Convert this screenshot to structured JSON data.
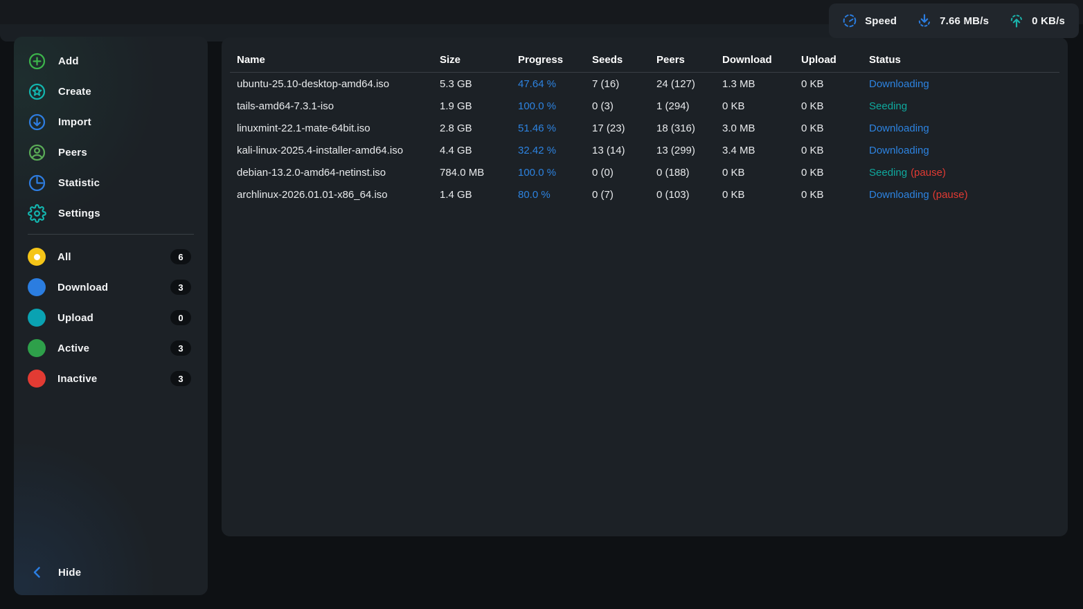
{
  "window": {
    "controls": [
      {
        "name": "minimize-button",
        "icon": "minimize-icon"
      },
      {
        "name": "maximize-button",
        "icon": "maximize-icon"
      },
      {
        "name": "close-button",
        "icon": "close-icon"
      }
    ]
  },
  "sidebar": {
    "nav": [
      {
        "label": "Add",
        "icon": "plus-circle-icon",
        "color": "#3cb44b"
      },
      {
        "label": "Create",
        "icon": "star-circle-icon",
        "color": "#13b6af"
      },
      {
        "label": "Import",
        "icon": "arrow-down-circle-icon",
        "color": "#2e7de1"
      },
      {
        "label": "Peers",
        "icon": "person-circle-icon",
        "color": "#5aab57"
      },
      {
        "label": "Statistic",
        "icon": "pie-chart-icon",
        "color": "#2e7de1"
      },
      {
        "label": "Settings",
        "icon": "gear-icon",
        "color": "#13b6af"
      }
    ],
    "filters": [
      {
        "label": "All",
        "count": "6",
        "color": "#f5c518",
        "selected": true
      },
      {
        "label": "Download",
        "count": "3",
        "color": "#2b7de0",
        "selected": false
      },
      {
        "label": "Upload",
        "count": "0",
        "color": "#0aa2b2",
        "selected": false
      },
      {
        "label": "Active",
        "count": "3",
        "color": "#2ea04a",
        "selected": false
      },
      {
        "label": "Inactive",
        "count": "3",
        "color": "#e23b33",
        "selected": false
      }
    ],
    "hide_label": "Hide"
  },
  "table": {
    "columns": [
      "Name",
      "Size",
      "Progress",
      "Seeds",
      "Peers",
      "Download",
      "Upload",
      "Status"
    ],
    "rows": [
      {
        "name": "ubuntu-25.10-desktop-amd64.iso",
        "size": "5.3 GB",
        "progress": "47.64 %",
        "seeds": "7 (16)",
        "peers": "24 (127)",
        "download": "1.3 MB",
        "upload": "0 KB",
        "status": "Downloading",
        "status_kind": "downloading",
        "paused": false,
        "paused_label": ""
      },
      {
        "name": "tails-amd64-7.3.1-iso",
        "size": "1.9 GB",
        "progress": "100.0 %",
        "seeds": "0 (3)",
        "peers": "1 (294)",
        "download": "0 KB",
        "upload": "0 KB",
        "status": "Seeding",
        "status_kind": "seeding",
        "paused": false,
        "paused_label": ""
      },
      {
        "name": "linuxmint-22.1-mate-64bit.iso",
        "size": "2.8 GB",
        "progress": "51.46 %",
        "seeds": "17 (23)",
        "peers": "18 (316)",
        "download": "3.0 MB",
        "upload": "0 KB",
        "status": "Downloading",
        "status_kind": "downloading",
        "paused": false,
        "paused_label": ""
      },
      {
        "name": "kali-linux-2025.4-installer-amd64.iso",
        "size": "4.4 GB",
        "progress": "32.42 %",
        "seeds": "13 (14)",
        "peers": "13 (299)",
        "download": "3.4 MB",
        "upload": "0 KB",
        "status": "Downloading",
        "status_kind": "downloading",
        "paused": false,
        "paused_label": ""
      },
      {
        "name": "debian-13.2.0-amd64-netinst.iso",
        "size": "784.0 MB",
        "progress": "100.0 %",
        "seeds": "0 (0)",
        "peers": "0 (188)",
        "download": "0 KB",
        "upload": "0 KB",
        "status": "Seeding",
        "status_kind": "seeding",
        "paused": true,
        "paused_label": "(pause)"
      },
      {
        "name": "archlinux-2026.01.01-x86_64.iso",
        "size": "1.4 GB",
        "progress": "80.0 %",
        "seeds": "0 (7)",
        "peers": "0 (103)",
        "download": "0 KB",
        "upload": "0 KB",
        "status": "Downloading",
        "status_kind": "downloading",
        "paused": true,
        "paused_label": "(pause)"
      }
    ]
  },
  "statusbar": {
    "speed_label": "Speed",
    "download_speed": "7.66 MB/s",
    "upload_speed": "0 KB/s"
  },
  "colors": {
    "accent_blue": "#2b7de0",
    "accent_teal": "#0fa99e",
    "accent_red": "#e23a33",
    "accent_yellow": "#f5c518",
    "panel_bg": "#1c2126",
    "window_bg": "#0e1114"
  }
}
